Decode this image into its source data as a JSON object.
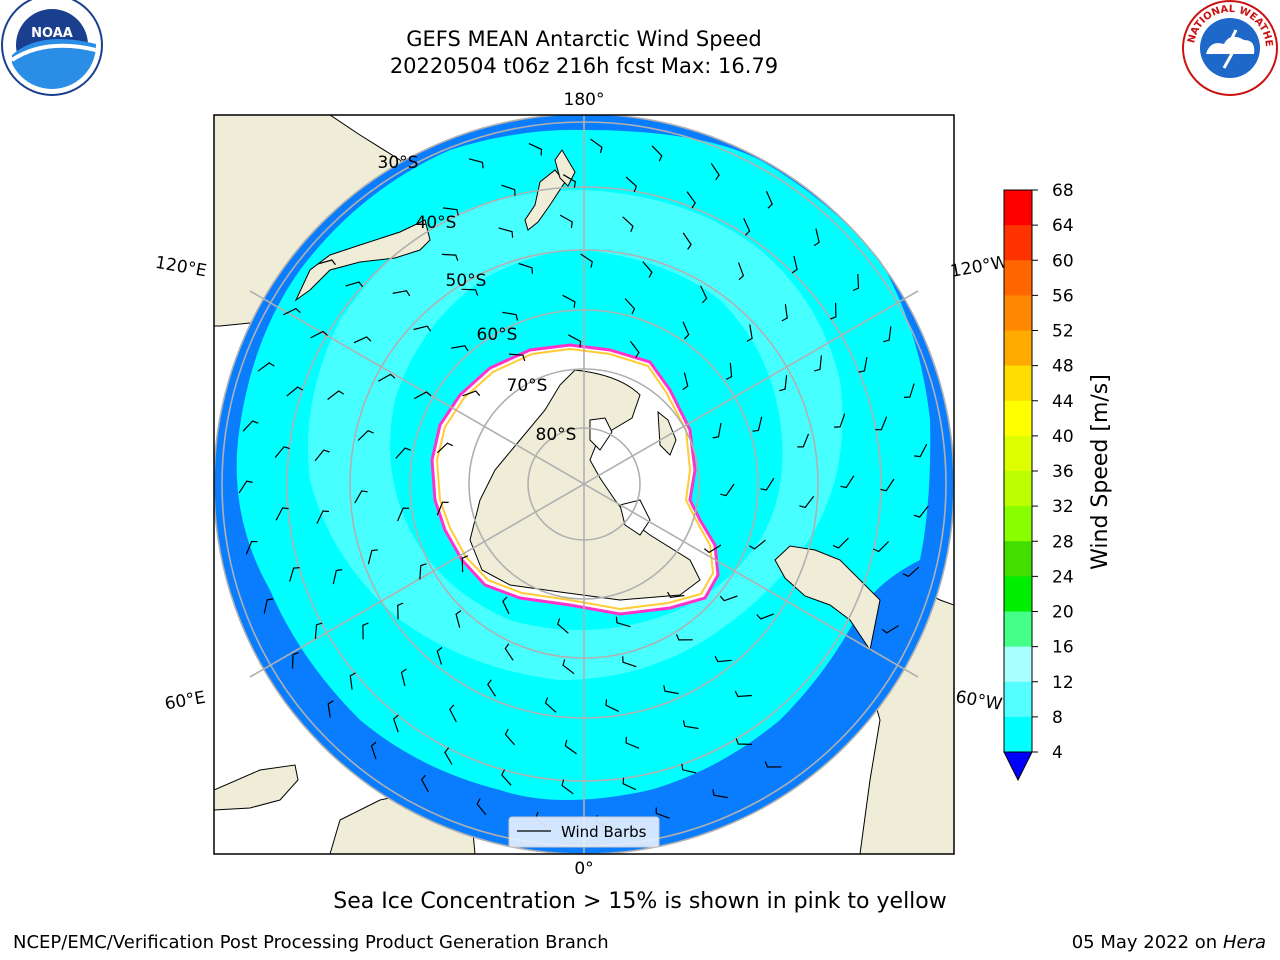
{
  "title": {
    "line1": "GEFS MEAN Antarctic Wind Speed",
    "line2": "20220504 t06z 216h fcst   Max: 16.79"
  },
  "logos": {
    "left": {
      "icon": "noaa-logo",
      "text": "NOAA"
    },
    "right": {
      "icon": "national-weather-service-logo",
      "text": "NATIONAL WEATHER SERVICE"
    }
  },
  "map": {
    "projection": "south-polar-stereographic",
    "longitude_labels": [
      "180°",
      "120°E",
      "120°W",
      "60°E",
      "60°W",
      "0°"
    ],
    "latitude_labels": [
      "30°S",
      "40°S",
      "50°S",
      "60°S",
      "70°S",
      "80°S"
    ],
    "legend": {
      "label": "Wind Barbs"
    }
  },
  "colorbar": {
    "label": "Wind Speed [m/s]",
    "ticks": [
      "68",
      "64",
      "60",
      "56",
      "52",
      "48",
      "44",
      "40",
      "36",
      "32",
      "28",
      "24",
      "20",
      "16",
      "12",
      "8",
      "4"
    ],
    "colors": [
      "#ff0000",
      "#ff3300",
      "#ff6600",
      "#ff8800",
      "#ffaa00",
      "#ffdd00",
      "#ffff00",
      "#ddff00",
      "#bbff00",
      "#88ff00",
      "#44dd00",
      "#00ee00",
      "#44ff88",
      "#aaffff",
      "#55ffff",
      "#00ffff",
      "#0088ff"
    ],
    "extend_color": "#0000ff"
  },
  "palette": {
    "land": "#efedd8",
    "ice": "#ffffff",
    "sea_ice_edge": "#ff33cc",
    "sea_ice_inner": "#ffcc33",
    "wind_4_8": "#0a7dff",
    "wind_8_12": "#00ffff",
    "wind_12_16": "#55ffff",
    "grid": "#b0b0b0"
  },
  "caption": "Sea Ice Concentration > 15% is shown in pink to yellow",
  "footer": {
    "left": "NCEP/EMC/Verification Post Processing Product Generation Branch",
    "right_date": "05 May 2022 on",
    "right_host": "Hera"
  }
}
